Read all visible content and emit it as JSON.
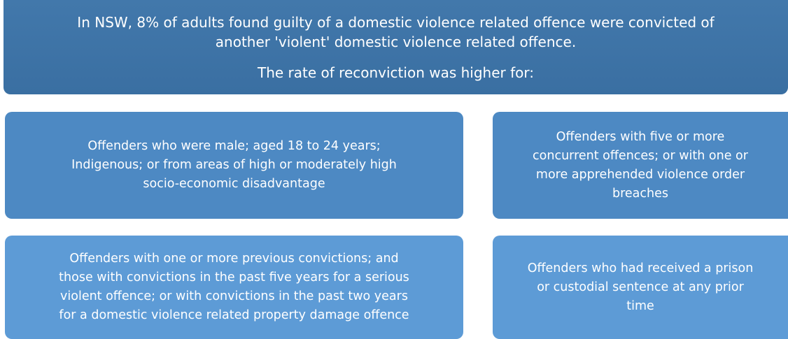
{
  "header": {
    "lines": [
      "In NSW, 8% of adults found guilty of a domestic violence related offence were convicted of",
      "another 'violent' domestic violence related offence."
    ],
    "subtitle": "The rate of reconviction was higher for:"
  },
  "boxes": [
    {
      "lines": [
        "Offenders who were male; aged 18 to 24 years;",
        "Indigenous; or from areas of high or moderately high",
        "socio-economic disadvantage"
      ]
    },
    {
      "lines": [
        "Offenders with five or more",
        "concurrent offences; or with one or",
        "more apprehended violence order",
        "breaches"
      ]
    },
    {
      "lines": [
        "Offenders with one or more previous convictions; and",
        "those with convictions in the past five years for a serious",
        "violent offence; or with convictions in the past two years",
        "for a domestic violence related property damage offence"
      ]
    },
    {
      "lines": [
        "Offenders who had received a prison",
        "or custodial sentence at any prior",
        "time"
      ]
    }
  ]
}
